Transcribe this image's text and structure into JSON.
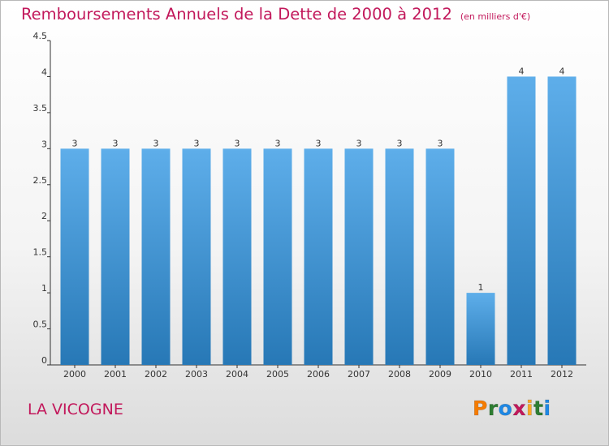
{
  "header": {
    "title": "Remboursements Annuels de la Dette de 2000 à 2012",
    "unit": "(en milliers d'€)"
  },
  "footer": {
    "town": "LA VICOGNE",
    "logo_letters": [
      "P",
      "r",
      "o",
      "x",
      "i",
      "t",
      "i"
    ],
    "logo_colors": [
      "#f57c00",
      "#2e7d32",
      "#1e88e5",
      "#c2185b",
      "#f9a825",
      "#2e7d32",
      "#1e88e5"
    ]
  },
  "colors": {
    "bar_top": "#5eaeea",
    "bar_bottom": "#2778b6",
    "axis": "#333333",
    "grid": "#cfcfcf"
  },
  "chart_data": {
    "type": "bar",
    "title": "Remboursements Annuels de la Dette de 2000 à 2012",
    "subtitle": "(en milliers d'€)",
    "xlabel": "",
    "ylabel": "",
    "categories": [
      "2000",
      "2001",
      "2002",
      "2003",
      "2004",
      "2005",
      "2006",
      "2007",
      "2008",
      "2009",
      "2010",
      "2011",
      "2012"
    ],
    "values": [
      3,
      3,
      3,
      3,
      3,
      3,
      3,
      3,
      3,
      3,
      1,
      4,
      4
    ],
    "data_labels": [
      "3",
      "3",
      "3",
      "3",
      "3",
      "3",
      "3",
      "3",
      "3",
      "3",
      "1",
      "4",
      "4"
    ],
    "ylim": [
      0,
      4.5
    ],
    "yticks": [
      0,
      0.5,
      1,
      1.5,
      2,
      2.5,
      3,
      3.5,
      4,
      4.5
    ],
    "ytick_labels": [
      "0",
      "0.5",
      "1",
      "1.5",
      "2",
      "2.5",
      "3",
      "3.5",
      "4",
      "4.5"
    ],
    "grid": false,
    "legend": "none"
  }
}
